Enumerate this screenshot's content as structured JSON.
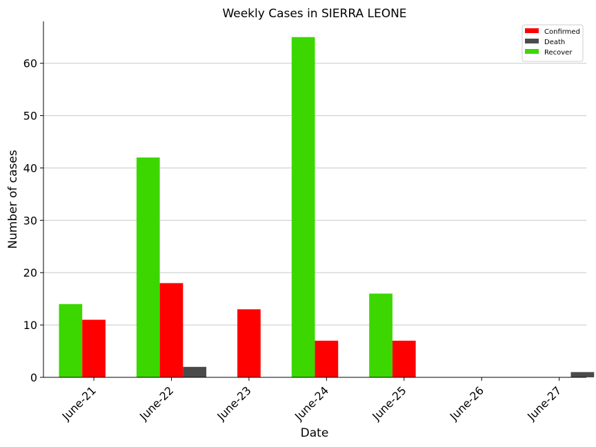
{
  "chart_data": {
    "type": "bar",
    "title": "Weekly Cases in SIERRA LEONE",
    "xlabel": "Date",
    "ylabel": "Number of cases",
    "categories": [
      "June-21",
      "June-22",
      "June-23",
      "June-24",
      "June-25",
      "June-26",
      "June-27"
    ],
    "series": [
      {
        "name": "Recover",
        "color": "#3cd700",
        "values": [
          14,
          42,
          0,
          65,
          16,
          0,
          0
        ]
      },
      {
        "name": "Confirmed",
        "color": "#ff0000",
        "values": [
          11,
          18,
          13,
          7,
          7,
          0,
          0
        ]
      },
      {
        "name": "Death",
        "color": "#4a4a4a",
        "values": [
          0,
          2,
          0,
          0,
          0,
          0,
          1
        ]
      }
    ],
    "legend_order": [
      "Confirmed",
      "Death",
      "Recover"
    ],
    "ylim": [
      0,
      68
    ],
    "yticks": [
      0,
      10,
      20,
      30,
      40,
      50,
      60
    ],
    "grid": "horizontal",
    "legend_position": "top-right",
    "xtick_rotation": 45
  }
}
